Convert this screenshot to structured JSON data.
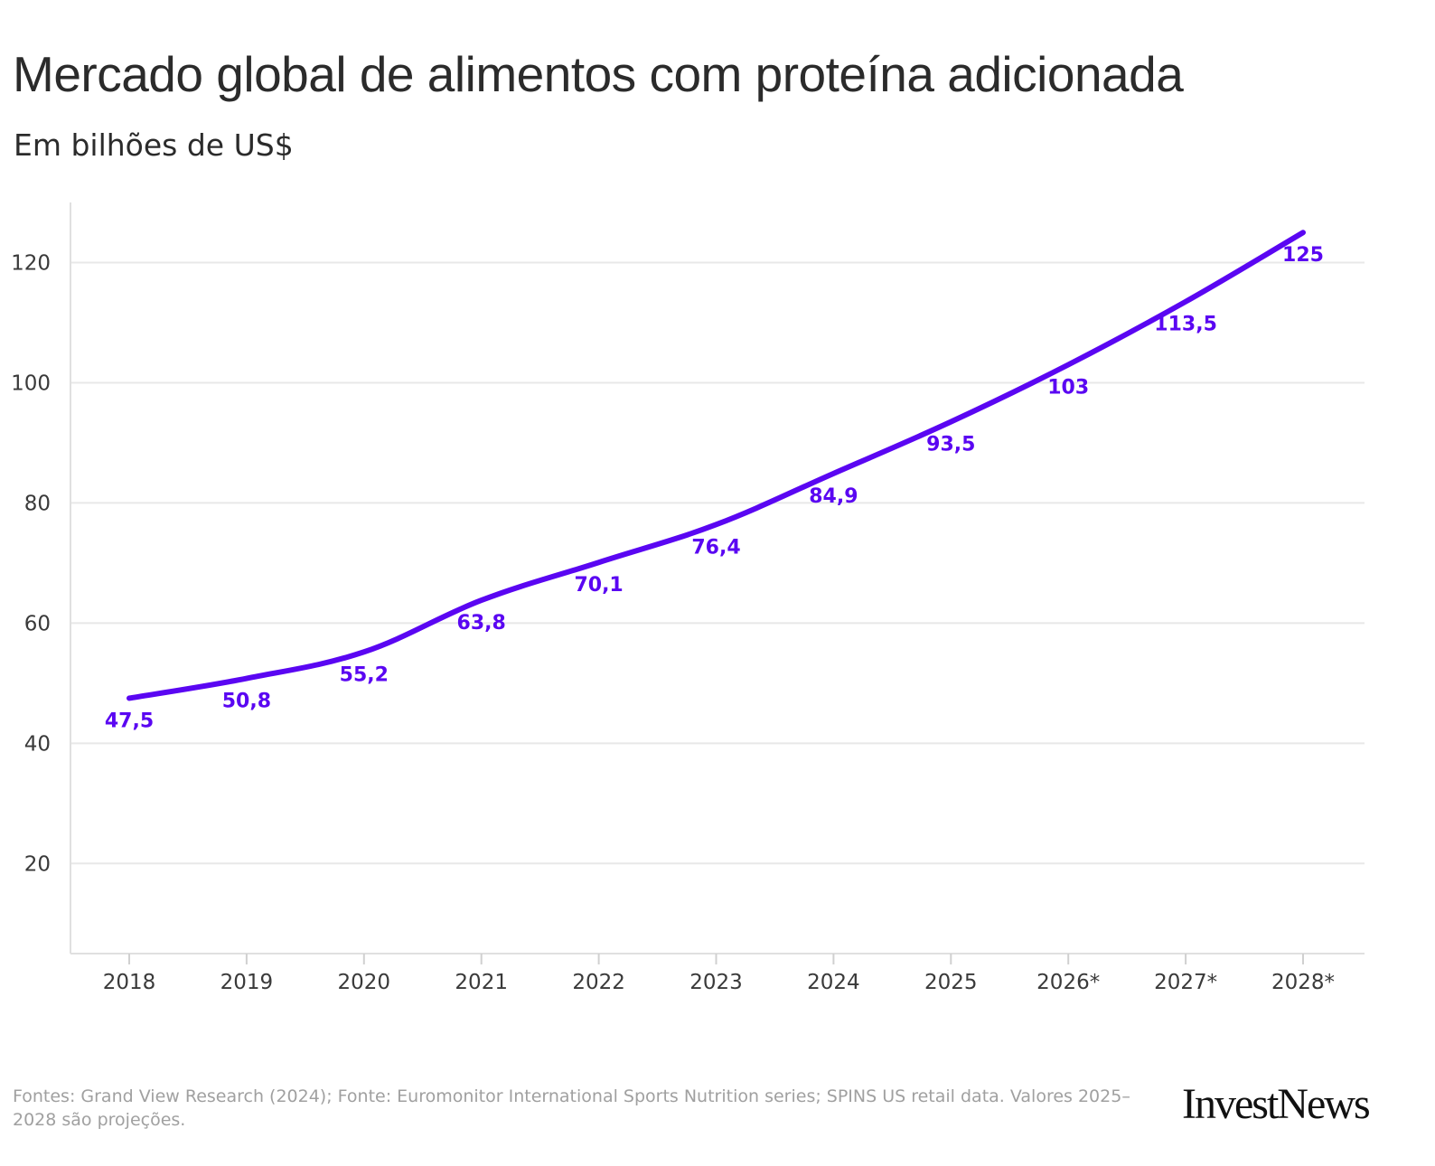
{
  "chart_data": {
    "type": "line",
    "title": "Mercado global de alimentos com proteína adicionada",
    "subtitle": "Em bilhões de US$",
    "categories": [
      "2018",
      "2019",
      "2020",
      "2021",
      "2022",
      "2023",
      "2024",
      "2025",
      "2026*",
      "2027*",
      "2028*"
    ],
    "values": [
      47.5,
      50.8,
      55.2,
      63.8,
      70.1,
      76.4,
      84.9,
      93.5,
      103,
      113.5,
      125
    ],
    "data_labels": [
      "47,5",
      "50,8",
      "55,2",
      "63,8",
      "70,1",
      "76,4",
      "84,9",
      "93,5",
      "103",
      "113,5",
      "125"
    ],
    "y_ticks": [
      20,
      40,
      60,
      80,
      100,
      120
    ],
    "ylim": [
      5,
      130
    ],
    "xlabel": "",
    "ylabel": "",
    "grid": true,
    "line_color": "#5a06f2"
  },
  "footer": {
    "source": "Fontes: Grand View Research (2024); Fonte: Euromonitor International Sports Nutrition series; SPINS US retail data. Valores 2025–2028 são projeções.",
    "logo": "InvestNews"
  }
}
